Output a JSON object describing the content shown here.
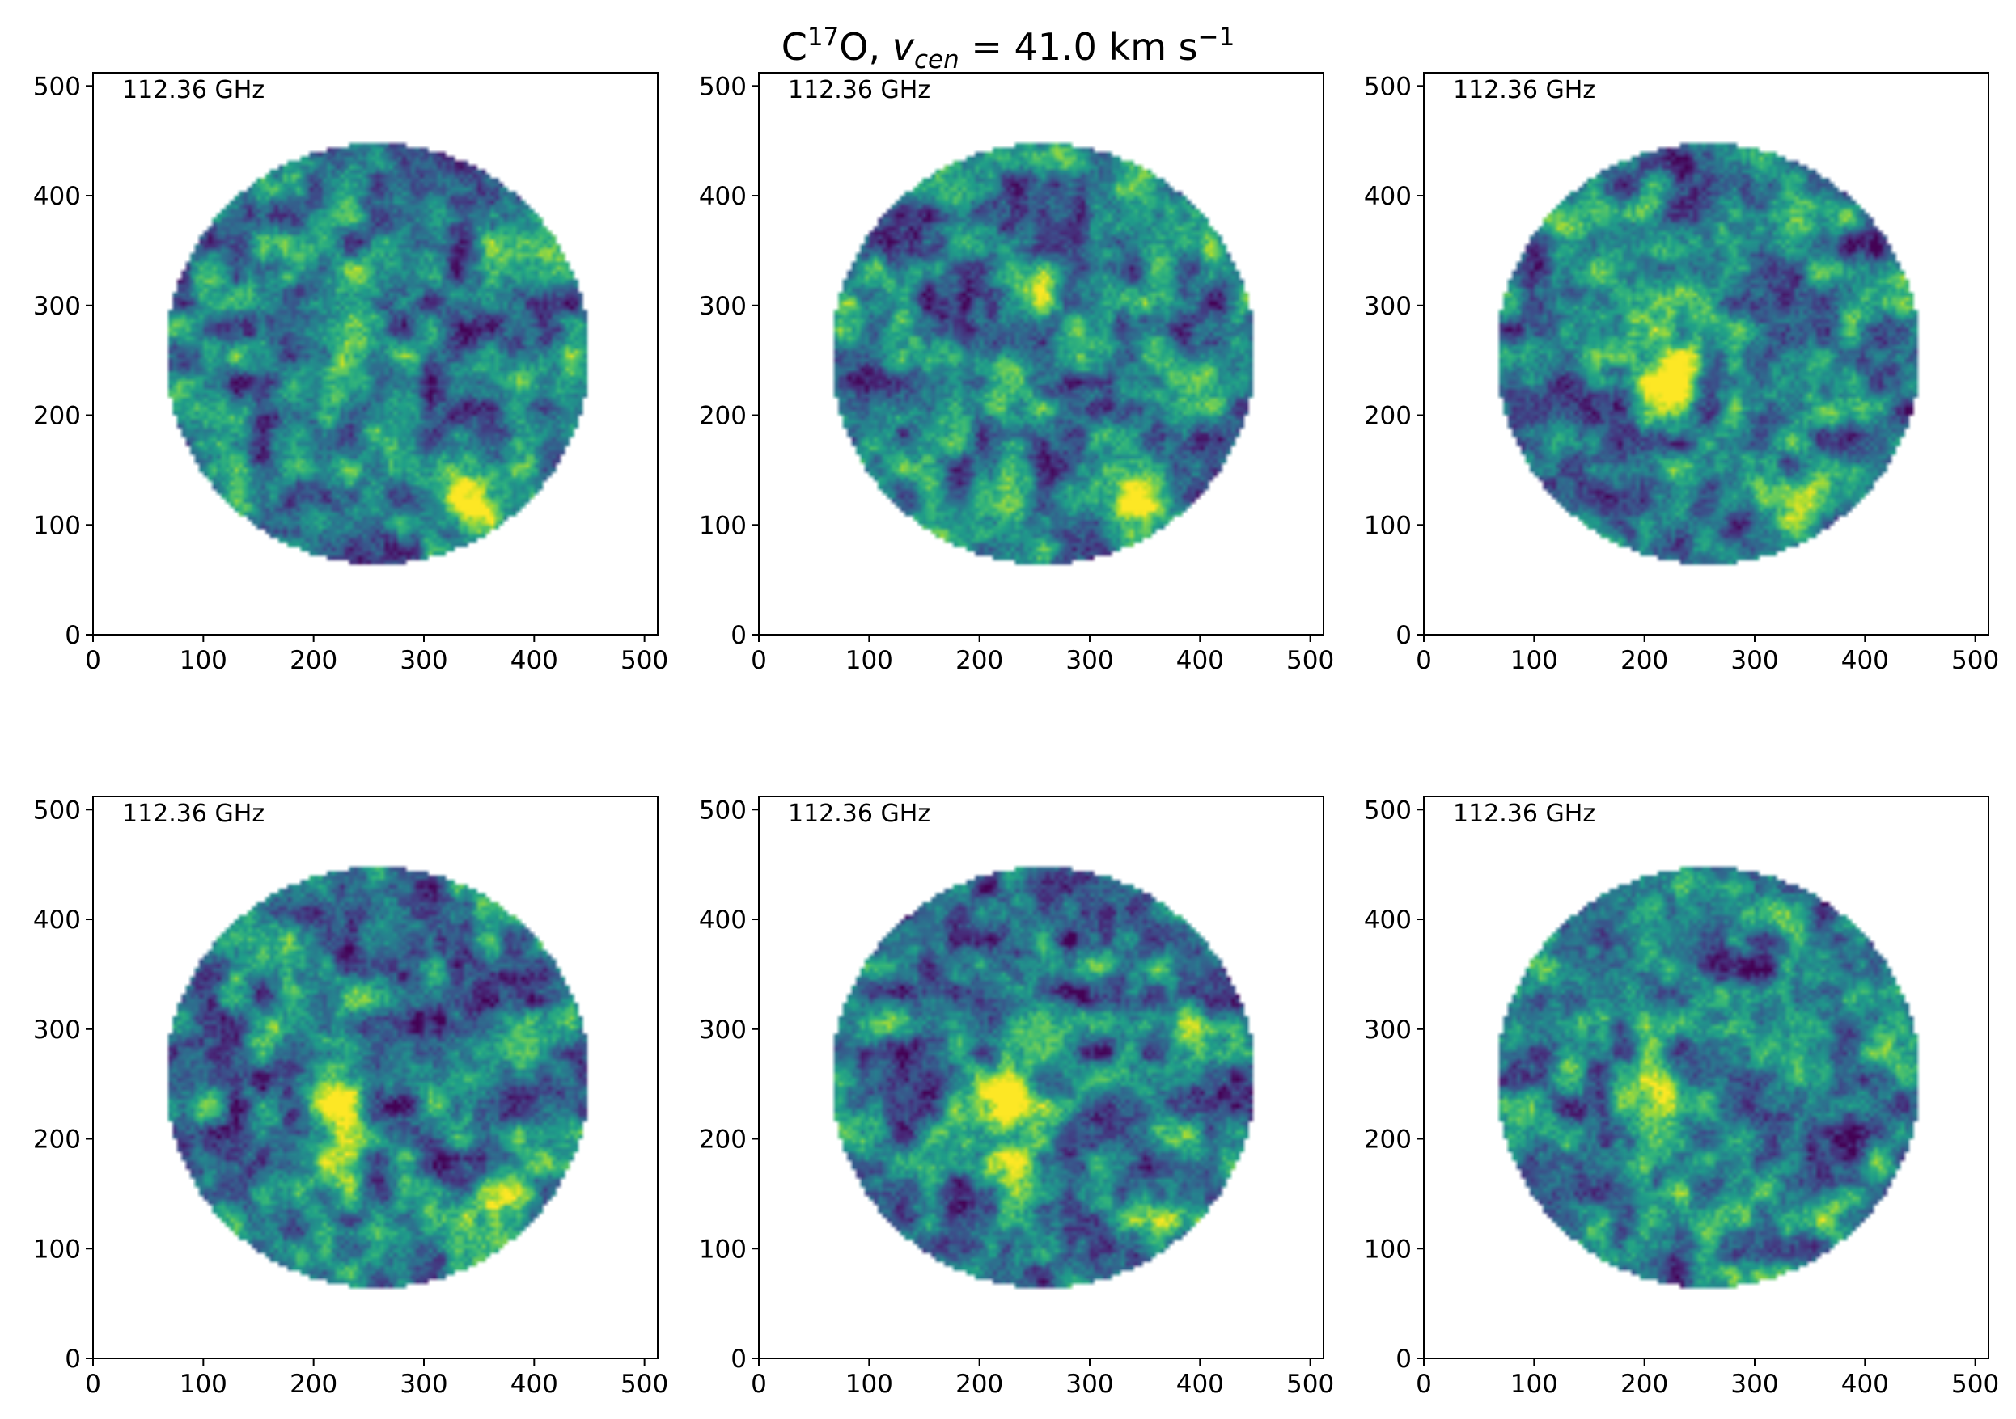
{
  "figure": {
    "title_prefix": "C",
    "title_isotope": "17",
    "title_element": "O, ",
    "title_var": "v",
    "title_sub": "cen",
    "title_eq": " =  41.0 km s",
    "title_exp": "−1"
  },
  "chart_data": [
    {
      "type": "heatmap",
      "annotation": "112.36 GHz",
      "xlim": [
        0,
        512
      ],
      "ylim": [
        0,
        512
      ],
      "xticks": [
        0,
        100,
        200,
        300,
        400,
        500
      ],
      "yticks": [
        0,
        100,
        200,
        300,
        400,
        500
      ],
      "colormap": "viridis",
      "valid_region": "disk",
      "disk_center": [
        258,
        256
      ],
      "disk_radius": 192,
      "peaks": [
        {
          "x": 225,
          "y": 230,
          "level": 0.9
        },
        {
          "x": 345,
          "y": 120,
          "level": 0.9
        },
        {
          "x": 245,
          "y": 310,
          "level": 0.7
        },
        {
          "x": 400,
          "y": 235,
          "level": 0.7
        }
      ],
      "seed": 11
    },
    {
      "type": "heatmap",
      "annotation": "112.36 GHz",
      "xlim": [
        0,
        512
      ],
      "ylim": [
        0,
        512
      ],
      "xticks": [
        0,
        100,
        200,
        300,
        400,
        500
      ],
      "yticks": [
        0,
        100,
        200,
        300,
        400,
        500
      ],
      "colormap": "viridis",
      "valid_region": "disk",
      "disk_center": [
        258,
        256
      ],
      "disk_radius": 192,
      "peaks": [
        {
          "x": 225,
          "y": 230,
          "level": 0.9
        },
        {
          "x": 345,
          "y": 120,
          "level": 0.85
        },
        {
          "x": 245,
          "y": 310,
          "level": 0.7
        },
        {
          "x": 395,
          "y": 235,
          "level": 0.65
        }
      ],
      "seed": 12
    },
    {
      "type": "heatmap",
      "annotation": "112.36 GHz",
      "xlim": [
        0,
        512
      ],
      "ylim": [
        0,
        512
      ],
      "xticks": [
        0,
        100,
        200,
        300,
        400,
        500
      ],
      "yticks": [
        0,
        100,
        200,
        300,
        400,
        500
      ],
      "colormap": "viridis",
      "valid_region": "disk",
      "disk_center": [
        258,
        256
      ],
      "disk_radius": 192,
      "peaks": [
        {
          "x": 228,
          "y": 238,
          "level": 1.0
        },
        {
          "x": 215,
          "y": 205,
          "level": 0.75
        },
        {
          "x": 240,
          "y": 305,
          "level": 0.7
        },
        {
          "x": 340,
          "y": 120,
          "level": 0.65
        }
      ],
      "seed": 13
    },
    {
      "type": "heatmap",
      "annotation": "112.36 GHz",
      "xlim": [
        0,
        512
      ],
      "ylim": [
        0,
        512
      ],
      "xticks": [
        0,
        100,
        200,
        300,
        400,
        500
      ],
      "yticks": [
        0,
        100,
        200,
        300,
        400,
        500
      ],
      "colormap": "viridis",
      "valid_region": "disk",
      "disk_center": [
        258,
        256
      ],
      "disk_radius": 192,
      "peaks": [
        {
          "x": 225,
          "y": 235,
          "level": 1.0
        },
        {
          "x": 230,
          "y": 185,
          "level": 0.75
        },
        {
          "x": 370,
          "y": 130,
          "level": 0.8
        },
        {
          "x": 395,
          "y": 280,
          "level": 0.6
        }
      ],
      "seed": 14
    },
    {
      "type": "heatmap",
      "annotation": "112.36 GHz",
      "xlim": [
        0,
        512
      ],
      "ylim": [
        0,
        512
      ],
      "xticks": [
        0,
        100,
        200,
        300,
        400,
        500
      ],
      "yticks": [
        0,
        100,
        200,
        300,
        400,
        500
      ],
      "colormap": "viridis",
      "valid_region": "disk",
      "disk_center": [
        258,
        256
      ],
      "disk_radius": 192,
      "peaks": [
        {
          "x": 222,
          "y": 235,
          "level": 1.0
        },
        {
          "x": 230,
          "y": 185,
          "level": 0.75
        },
        {
          "x": 365,
          "y": 130,
          "level": 0.8
        },
        {
          "x": 390,
          "y": 280,
          "level": 0.6
        }
      ],
      "seed": 15
    },
    {
      "type": "heatmap",
      "annotation": "112.36 GHz",
      "xlim": [
        0,
        512
      ],
      "ylim": [
        0,
        512
      ],
      "xticks": [
        0,
        100,
        200,
        300,
        400,
        500
      ],
      "yticks": [
        0,
        100,
        200,
        300,
        400,
        500
      ],
      "colormap": "viridis",
      "valid_region": "disk",
      "disk_center": [
        258,
        256
      ],
      "disk_radius": 192,
      "peaks": [
        {
          "x": 220,
          "y": 235,
          "level": 1.0
        },
        {
          "x": 210,
          "y": 200,
          "level": 0.7
        },
        {
          "x": 375,
          "y": 128,
          "level": 0.7
        },
        {
          "x": 420,
          "y": 280,
          "level": 0.6
        }
      ],
      "seed": 16
    }
  ]
}
